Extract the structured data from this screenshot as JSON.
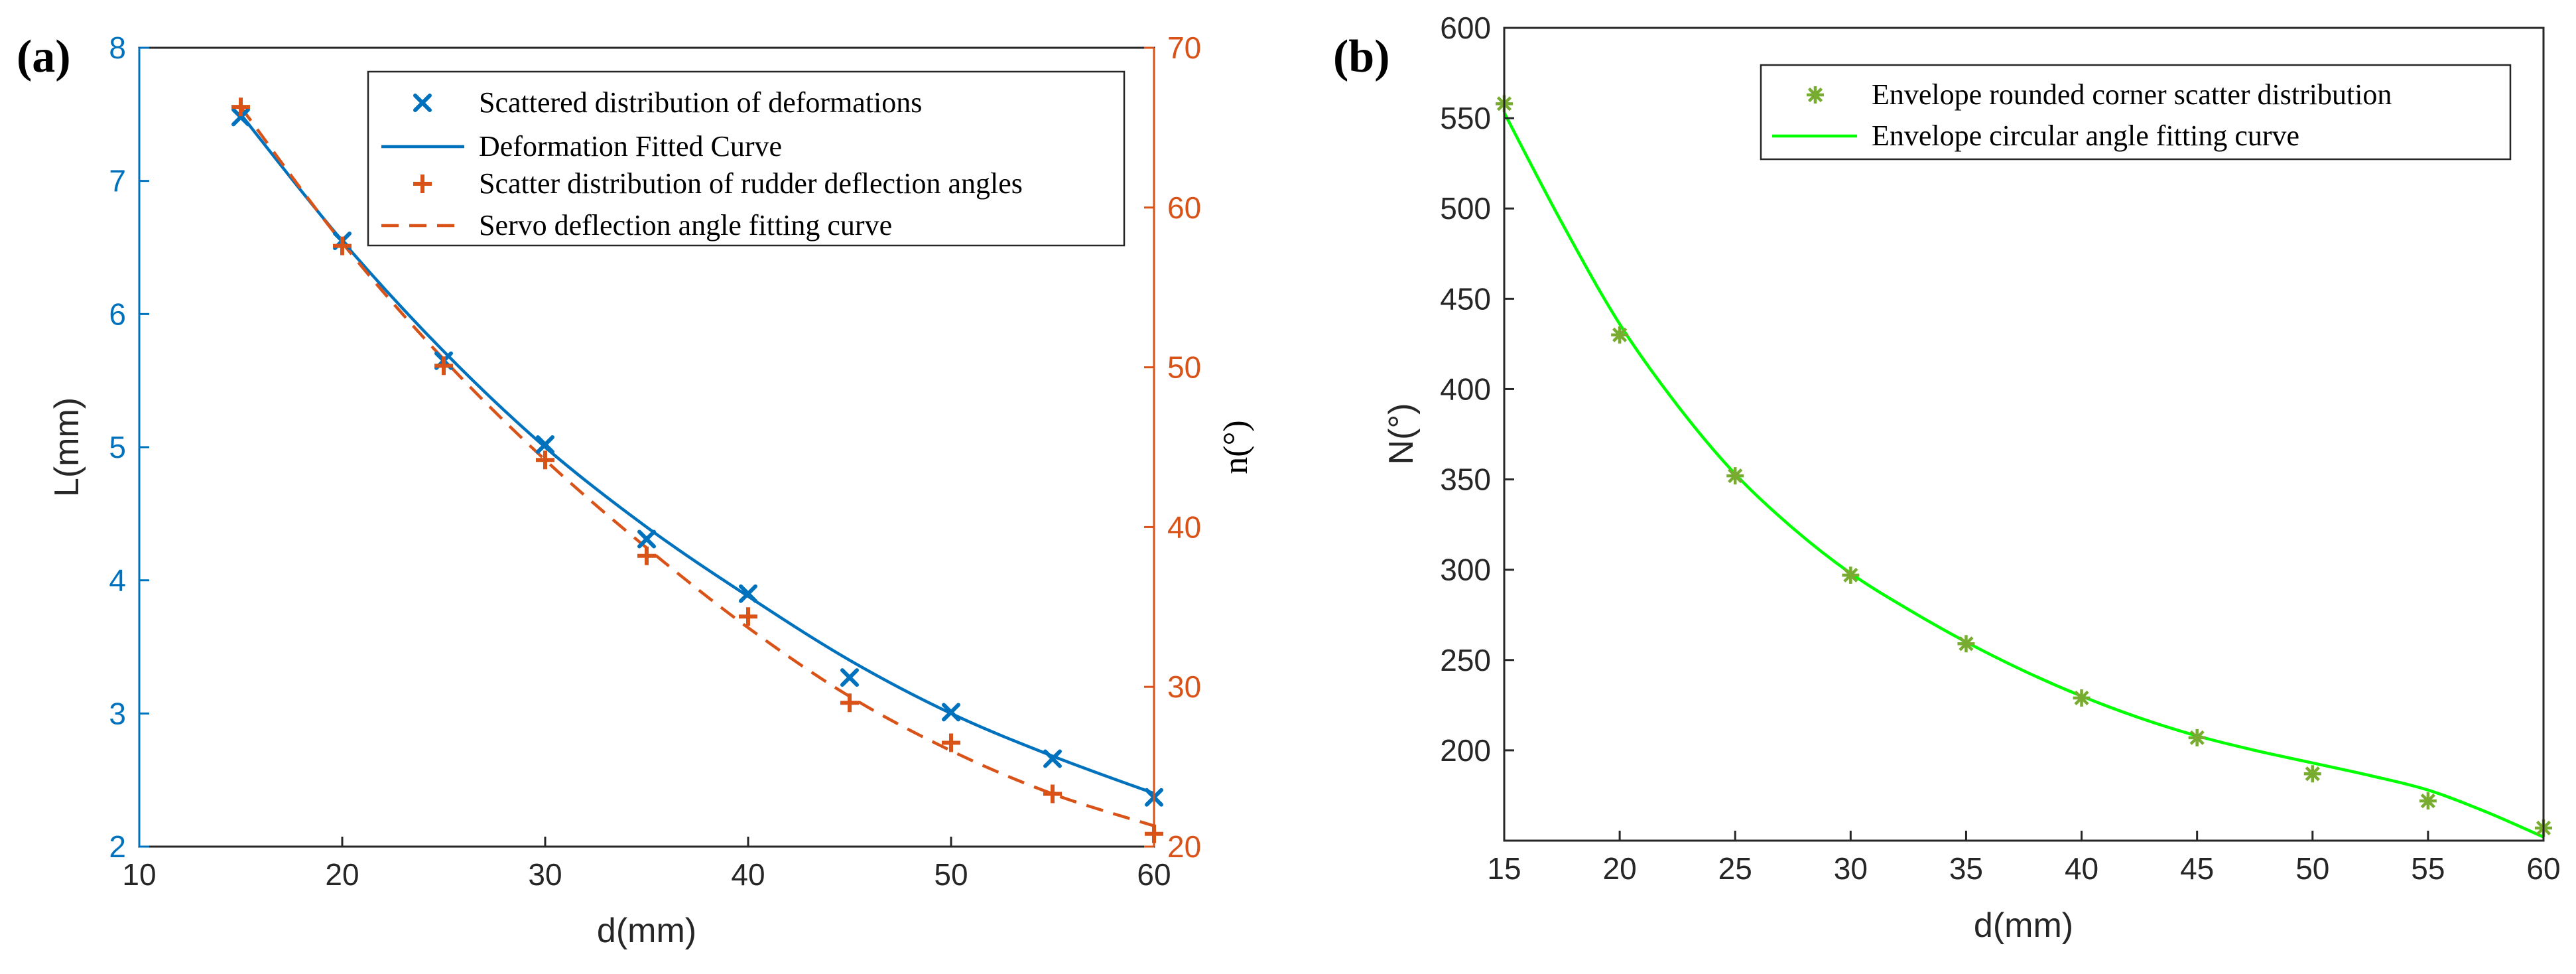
{
  "chart_data": [
    {
      "type": "line",
      "panel_label": "(a)",
      "xlabel": "d(mm)",
      "ylabel_left": "L(mm)",
      "ylabel_right": "n(°)",
      "xlim": [
        10,
        60
      ],
      "ylim_left": [
        2,
        8
      ],
      "ylim_right": [
        20,
        70
      ],
      "x_ticks": [
        10,
        20,
        30,
        40,
        50,
        60
      ],
      "x_tick_labels": [
        "10",
        "20",
        "30",
        "40",
        "50",
        "60"
      ],
      "y_left_ticks": [
        2,
        3,
        4,
        5,
        6,
        7,
        8
      ],
      "y_left_tick_labels": [
        "2",
        "3",
        "4",
        "5",
        "6",
        "7",
        "8"
      ],
      "y_right_ticks": [
        20,
        30,
        40,
        50,
        60,
        70
      ],
      "y_right_tick_labels": [
        "20",
        "30",
        "40",
        "50",
        "60",
        "70"
      ],
      "left_axis_color": "#0072BD",
      "right_axis_color": "#D95319",
      "legend_position": "top-right",
      "series": [
        {
          "name": "Scattered distribution of deformations",
          "kind": "scatter",
          "marker": "x",
          "axis": "left",
          "color": "#0072BD",
          "x": [
            15,
            20,
            25,
            30,
            35,
            40,
            45,
            50,
            55,
            60
          ],
          "y": [
            7.48,
            6.55,
            5.65,
            5.02,
            4.31,
            3.9,
            3.27,
            3.01,
            2.66,
            2.37
          ]
        },
        {
          "name": "Deformation Fitted Curve",
          "kind": "line",
          "style": "solid",
          "axis": "left",
          "color": "#0072BD",
          "x": [
            15,
            20,
            25,
            30,
            35,
            40,
            45,
            50,
            55,
            60
          ],
          "y": [
            7.5,
            6.55,
            5.72,
            5.0,
            4.4,
            3.88,
            3.4,
            3.0,
            2.68,
            2.4
          ]
        },
        {
          "name": "Scatter distribution of rudder deflection angles",
          "kind": "scatter",
          "marker": "+",
          "axis": "right",
          "color": "#D95319",
          "x": [
            15,
            20,
            25,
            30,
            35,
            40,
            45,
            50,
            55,
            60
          ],
          "y": [
            66.3,
            57.6,
            50.1,
            44.2,
            38.2,
            34.4,
            29.0,
            26.5,
            23.3,
            20.8
          ]
        },
        {
          "name": "Servo deflection angle fitting curve",
          "kind": "line",
          "style": "dashed",
          "axis": "right",
          "color": "#D95319",
          "x": [
            15,
            20,
            25,
            30,
            35,
            40,
            45,
            50,
            55,
            60
          ],
          "y": [
            66.3,
            57.8,
            50.5,
            44.2,
            38.7,
            33.7,
            29.4,
            26.0,
            23.3,
            21.3
          ]
        }
      ]
    },
    {
      "type": "line",
      "panel_label": "(b)",
      "xlabel": "d(mm)",
      "ylabel": "N(°)",
      "xlim": [
        15,
        60
      ],
      "ylim": [
        150,
        600
      ],
      "x_ticks": [
        15,
        20,
        25,
        30,
        35,
        40,
        45,
        50,
        55,
        60
      ],
      "x_tick_labels": [
        "15",
        "20",
        "25",
        "30",
        "35",
        "40",
        "45",
        "50",
        "55",
        "60"
      ],
      "y_ticks": [
        200,
        250,
        300,
        350,
        400,
        450,
        500,
        550,
        600
      ],
      "y_tick_labels": [
        "200",
        "250",
        "300",
        "350",
        "400",
        "450",
        "500",
        "550",
        "600"
      ],
      "axis_color": "#262626",
      "legend_position": "top-right",
      "series": [
        {
          "name": "Envelope rounded corner scatter distribution",
          "kind": "scatter",
          "marker": "*",
          "color": "#77AC30",
          "x": [
            15,
            20,
            25,
            30,
            35,
            40,
            45,
            50,
            55,
            60
          ],
          "y": [
            558,
            430,
            352,
            297,
            259,
            229,
            207,
            187,
            172,
            157
          ]
        },
        {
          "name": "Envelope circular angle fitting curve",
          "kind": "line",
          "style": "solid",
          "color": "#00FF00",
          "x": [
            15,
            17.5,
            20,
            22.5,
            25,
            27.5,
            30,
            32.5,
            35,
            37.5,
            40,
            42.5,
            45,
            47.5,
            50,
            52.5,
            55,
            57.5,
            60
          ],
          "y": [
            553,
            492,
            436,
            391,
            353,
            323,
            298,
            278,
            260,
            244,
            230,
            218,
            208,
            200,
            193,
            186,
            178,
            166,
            152
          ]
        }
      ]
    }
  ]
}
